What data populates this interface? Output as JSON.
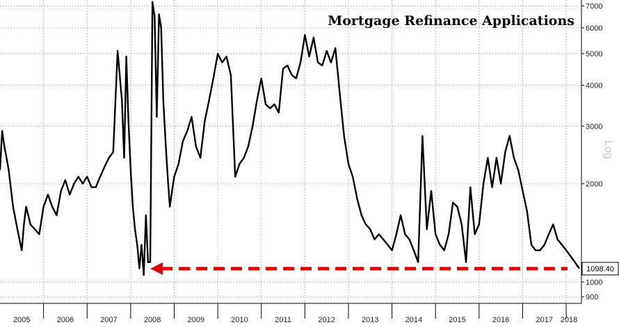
{
  "chart_data": {
    "type": "line",
    "title": "Mortgage Refinance Applications",
    "scale_label": "Log",
    "y_scale": "log",
    "ylim": [
      860,
      7300
    ],
    "y_ticks": [
      900,
      1000,
      2000,
      3000,
      4000,
      5000,
      6000,
      7000
    ],
    "y_tick_labels": [
      "900",
      "1000",
      "2000",
      "3000",
      "4000",
      "5000",
      "6000",
      "7000"
    ],
    "x_start": 2005.0,
    "x_end": 2018.35,
    "x_tick_labels": [
      "2005",
      "2006",
      "2007",
      "2008",
      "2009",
      "2010",
      "2011",
      "2012",
      "2013",
      "2014",
      "2015",
      "2016",
      "2017",
      "2018"
    ],
    "grid": true,
    "last_value": 1098.4,
    "last_value_label": "1098.40",
    "arrow_color": "#e00000",
    "line_color": "#000000",
    "series": [
      {
        "x": [
          2005.0,
          2005.05,
          2005.1,
          2005.15,
          2005.2,
          2005.3,
          2005.4,
          2005.5,
          2005.55,
          2005.6,
          2005.7,
          2005.8,
          2005.9,
          2006.0,
          2006.1,
          2006.2,
          2006.3,
          2006.4,
          2006.5,
          2006.6,
          2006.7,
          2006.8,
          2006.9,
          2007.0,
          2007.1,
          2007.2,
          2007.3,
          2007.4,
          2007.5,
          2007.6,
          2007.7,
          2007.8,
          2007.85,
          2007.9,
          2007.95,
          2008.0,
          2008.05,
          2008.1,
          2008.15,
          2008.2,
          2008.25,
          2008.3,
          2008.35,
          2008.4,
          2008.45,
          2008.5,
          2008.55,
          2008.6,
          2008.65,
          2008.7,
          2008.75,
          2008.8,
          2008.85,
          2008.9,
          2008.95,
          2009.0,
          2009.1,
          2009.2,
          2009.3,
          2009.4,
          2009.5,
          2009.6,
          2009.7,
          2009.8,
          2009.9,
          2010.0,
          2010.1,
          2010.2,
          2010.3,
          2010.4,
          2010.5,
          2010.6,
          2010.7,
          2010.8,
          2010.9,
          2011.0,
          2011.1,
          2011.2,
          2011.3,
          2011.4,
          2011.5,
          2011.6,
          2011.7,
          2011.8,
          2011.9,
          2012.0,
          2012.1,
          2012.2,
          2012.3,
          2012.4,
          2012.5,
          2012.6,
          2012.7,
          2012.8,
          2012.9,
          2013.0,
          2013.1,
          2013.2,
          2013.3,
          2013.4,
          2013.5,
          2013.6,
          2013.7,
          2013.8,
          2013.9,
          2014.0,
          2014.1,
          2014.2,
          2014.3,
          2014.4,
          2014.5,
          2014.6,
          2014.7,
          2014.8,
          2014.9,
          2015.0,
          2015.1,
          2015.2,
          2015.3,
          2015.4,
          2015.5,
          2015.6,
          2015.7,
          2015.8,
          2015.9,
          2016.0,
          2016.1,
          2016.2,
          2016.3,
          2016.4,
          2016.5,
          2016.6,
          2016.7,
          2016.8,
          2016.9,
          2017.0,
          2017.1,
          2017.2,
          2017.3,
          2017.4,
          2017.5,
          2017.6,
          2017.7,
          2017.8,
          2017.9,
          2018.0,
          2018.1,
          2018.2,
          2018.3
        ],
        "values": [
          2200,
          2900,
          2600,
          2400,
          2200,
          1700,
          1450,
          1250,
          1500,
          1700,
          1500,
          1450,
          1400,
          1700,
          1850,
          1700,
          1600,
          1900,
          2050,
          1850,
          2000,
          2100,
          2000,
          2100,
          1950,
          1950,
          2100,
          2250,
          2400,
          2500,
          5100,
          3600,
          2400,
          4900,
          3100,
          2200,
          1700,
          1450,
          1300,
          1100,
          1300,
          1050,
          1600,
          1150,
          1150,
          7200,
          6500,
          3200,
          6600,
          6000,
          3600,
          2700,
          2100,
          1700,
          1900,
          2100,
          2300,
          2700,
          2900,
          3200,
          2600,
          2400,
          3100,
          3600,
          4200,
          5000,
          4700,
          4900,
          4300,
          2100,
          2300,
          2400,
          2600,
          3000,
          3600,
          4200,
          3500,
          3400,
          3500,
          3300,
          4500,
          4600,
          4300,
          4200,
          4700,
          5700,
          4900,
          5600,
          4700,
          4600,
          5100,
          4700,
          5200,
          3800,
          2800,
          2300,
          2100,
          1800,
          1600,
          1500,
          1450,
          1350,
          1400,
          1350,
          1300,
          1250,
          1400,
          1600,
          1400,
          1350,
          1250,
          1150,
          2800,
          1450,
          1900,
          1400,
          1300,
          1250,
          1400,
          1750,
          1700,
          1500,
          1150,
          1950,
          1400,
          1500,
          2000,
          2400,
          1950,
          2400,
          2000,
          2500,
          2800,
          2400,
          2200,
          1900,
          1650,
          1300,
          1250,
          1250,
          1300,
          1400,
          1500,
          1350,
          1300,
          1250,
          1200,
          1150,
          1098.4
        ]
      }
    ]
  }
}
